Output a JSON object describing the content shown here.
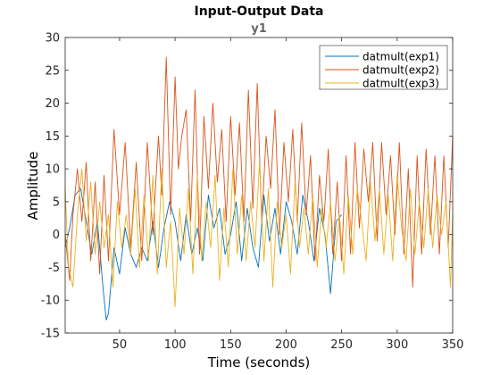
{
  "chart_data": {
    "type": "line",
    "title": "Input-Output Data",
    "subtitle": "y1",
    "xlabel": "Time (seconds)",
    "ylabel": "Amplitude",
    "xlim": [
      1,
      350
    ],
    "ylim": [
      -15,
      30
    ],
    "xticks": [
      50,
      100,
      150,
      200,
      250,
      300,
      350
    ],
    "yticks": [
      -15,
      -10,
      -5,
      0,
      5,
      10,
      15,
      20,
      25,
      30
    ],
    "grid": false,
    "legend_position": "top-right",
    "series": [
      {
        "name": "datmult(exp1)",
        "color": "#0072BD",
        "x": [
          1,
          5,
          10,
          15,
          20,
          25,
          30,
          35,
          38,
          40,
          45,
          50,
          55,
          60,
          65,
          70,
          75,
          80,
          85,
          90,
          95,
          100,
          105,
          110,
          115,
          120,
          125,
          130,
          135,
          140,
          145,
          150,
          155,
          160,
          165,
          170,
          175,
          180,
          185,
          190,
          195,
          200,
          205,
          210,
          215,
          220,
          225,
          230,
          235,
          240,
          245,
          250
        ],
        "y": [
          -2,
          1,
          6,
          7,
          2,
          -3,
          2,
          -8,
          -13,
          -12,
          -2,
          -6,
          1,
          -3,
          -5,
          -2,
          -4,
          2,
          -5,
          1,
          5,
          2,
          -4,
          3,
          -3,
          1,
          -4,
          6,
          1,
          4,
          -3,
          0,
          5,
          -4,
          4,
          -2,
          -5,
          6,
          -1,
          4,
          -3,
          5,
          2,
          -3,
          6,
          2,
          -4,
          4,
          0,
          -9,
          2,
          3
        ]
      },
      {
        "name": "datmult(exp2)",
        "color": "#D95319",
        "x": [
          1,
          5,
          8,
          12,
          16,
          20,
          24,
          28,
          32,
          36,
          40,
          45,
          50,
          55,
          60,
          65,
          70,
          75,
          80,
          85,
          88,
          92,
          96,
          100,
          103,
          106,
          110,
          114,
          118,
          122,
          126,
          130,
          134,
          138,
          142,
          146,
          150,
          154,
          158,
          162,
          166,
          170,
          174,
          178,
          182,
          186,
          190,
          194,
          198,
          202,
          206,
          210,
          214,
          218,
          222,
          226,
          230,
          234,
          238,
          242,
          246,
          250,
          254,
          258,
          262,
          266,
          270,
          274,
          278,
          282,
          286,
          290,
          294,
          298,
          302,
          306,
          310,
          314,
          318,
          322,
          326,
          330,
          334,
          338,
          342,
          346,
          350
        ],
        "y": [
          0,
          -7,
          3,
          10,
          2,
          11,
          -4,
          8,
          -6,
          9,
          -4,
          16,
          3,
          14,
          -2,
          11,
          -4,
          14,
          0,
          15,
          6,
          27,
          3,
          24,
          10,
          15,
          19,
          2,
          22,
          -3,
          18,
          7,
          20,
          8,
          16,
          2,
          18,
          6,
          17,
          2,
          22,
          4,
          23,
          2,
          15,
          7,
          19,
          0,
          14,
          5,
          16,
          2,
          17,
          3,
          12,
          -4,
          9,
          2,
          13,
          -3,
          8,
          -4,
          12,
          -3,
          14,
          1,
          13,
          5,
          14,
          -1,
          14,
          3,
          12,
          0,
          14,
          -3,
          10,
          -8,
          12,
          -3,
          13,
          0,
          12,
          -3,
          12,
          -2,
          15
        ]
      },
      {
        "name": "datmult(exp3)",
        "color": "#EDB120",
        "x": [
          1,
          4,
          8,
          12,
          16,
          20,
          24,
          28,
          32,
          36,
          40,
          44,
          48,
          52,
          56,
          60,
          64,
          68,
          72,
          76,
          80,
          84,
          88,
          92,
          96,
          100,
          104,
          108,
          112,
          116,
          120,
          124,
          128,
          132,
          136,
          140,
          144,
          148,
          152,
          156,
          160,
          164,
          168,
          172,
          176,
          180,
          184,
          188,
          192,
          196,
          200,
          204,
          208,
          212,
          216,
          220,
          224,
          228,
          232,
          236,
          240,
          244,
          248,
          252,
          256,
          260,
          264,
          268,
          272,
          276,
          280,
          284,
          288,
          292,
          296,
          300,
          304,
          308,
          312,
          316,
          320,
          324,
          328,
          332,
          336,
          340,
          344,
          348,
          350
        ],
        "y": [
          7,
          -5,
          -8,
          3,
          10,
          -1,
          8,
          -3,
          5,
          -2,
          3,
          -8,
          5,
          -2,
          3,
          -3,
          7,
          -5,
          6,
          -4,
          9,
          -6,
          10,
          -5,
          2,
          -11,
          4,
          -3,
          7,
          -6,
          9,
          -4,
          5,
          -2,
          9,
          -7,
          4,
          -5,
          10,
          -3,
          6,
          -4,
          5,
          -2,
          11,
          -4,
          7,
          -8,
          5,
          -2,
          3,
          -6,
          8,
          -2,
          4,
          -3,
          6,
          -5,
          4,
          -2,
          5,
          -4,
          3,
          -6,
          6,
          -3,
          7,
          2,
          -4,
          8,
          -1,
          7,
          -3,
          6,
          -4,
          9,
          1,
          -4,
          7,
          -3,
          5,
          -2,
          7,
          -2,
          6,
          0,
          5,
          -8,
          3
        ]
      }
    ]
  }
}
